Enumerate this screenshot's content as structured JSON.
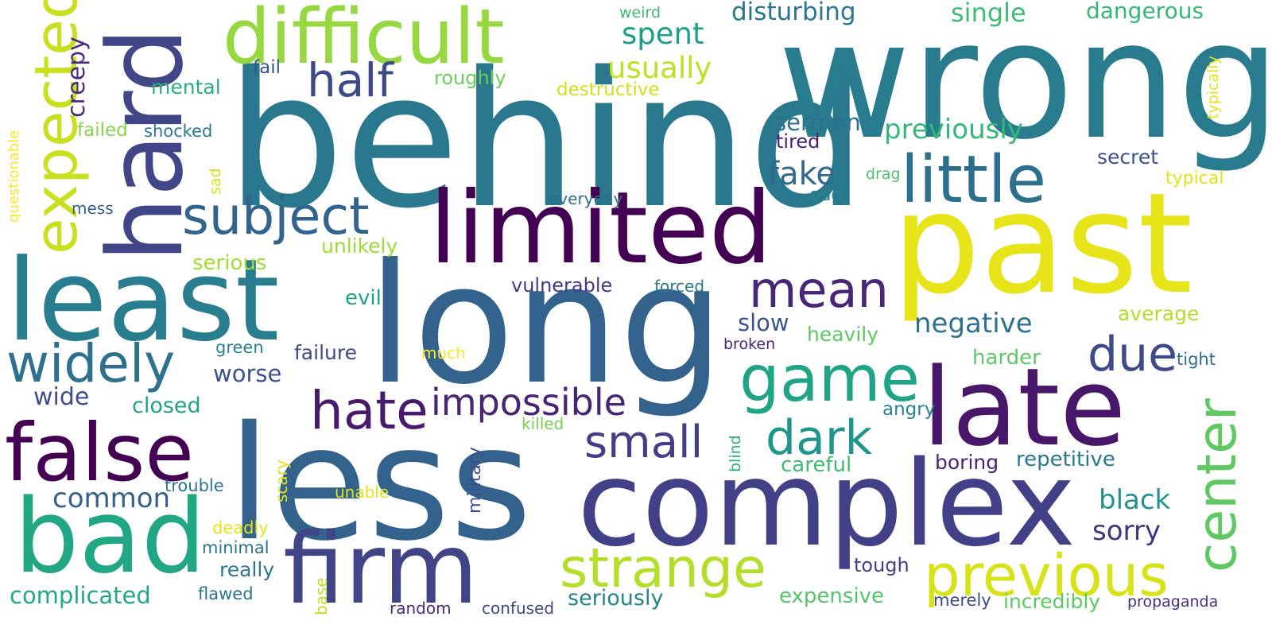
{
  "words": [
    {
      "text": "behind",
      "color": "#2a788e"
    },
    {
      "text": "wrong",
      "color": "#297b8e"
    },
    {
      "text": "long",
      "color": "#33638d"
    },
    {
      "text": "less",
      "color": "#33638d"
    },
    {
      "text": "past",
      "color": "#e7e419"
    },
    {
      "text": "complex",
      "color": "#424086"
    },
    {
      "text": "limited",
      "color": "#440154"
    },
    {
      "text": "least",
      "color": "#287d8e"
    },
    {
      "text": "late",
      "color": "#481769"
    },
    {
      "text": "difficult",
      "color": "#95d840"
    },
    {
      "text": "hard",
      "color": "#404688"
    },
    {
      "text": "bad",
      "color": "#22a785"
    },
    {
      "text": "firm",
      "color": "#414487"
    },
    {
      "text": "false",
      "color": "#440154"
    },
    {
      "text": "strange",
      "color": "#b5de2b"
    },
    {
      "text": "previous",
      "color": "#d8e219"
    },
    {
      "text": "little",
      "color": "#2d708e"
    },
    {
      "text": "game",
      "color": "#20a486"
    },
    {
      "text": "subject",
      "color": "#32648e"
    },
    {
      "text": "mean",
      "color": "#482677"
    },
    {
      "text": "widely",
      "color": "#2d718e"
    },
    {
      "text": "hate",
      "color": "#481a6c"
    },
    {
      "text": "impossible",
      "color": "#482475"
    },
    {
      "text": "expected",
      "color": "#c8e020"
    },
    {
      "text": "due",
      "color": "#3e4a89"
    },
    {
      "text": "dark",
      "color": "#1f968b"
    },
    {
      "text": "small",
      "color": "#433e85"
    },
    {
      "text": "half",
      "color": "#3e4989"
    },
    {
      "text": "center",
      "color": "#5ec962"
    },
    {
      "text": "fake",
      "color": "#31688e"
    },
    {
      "text": "negative",
      "color": "#2c728e"
    },
    {
      "text": "black",
      "color": "#21918c"
    },
    {
      "text": "common",
      "color": "#355f8d"
    },
    {
      "text": "previously",
      "color": "#35b779"
    },
    {
      "text": "sorry",
      "color": "#46337e"
    },
    {
      "text": "disturbing",
      "color": "#2a768e"
    },
    {
      "text": "spent",
      "color": "#1f9e89"
    },
    {
      "text": "usually",
      "color": "#bddf26"
    },
    {
      "text": "single",
      "color": "#3fbc73"
    },
    {
      "text": "dangerous",
      "color": "#35b779"
    },
    {
      "text": "complicated",
      "color": "#22a884"
    },
    {
      "text": "worse",
      "color": "#3b528b"
    },
    {
      "text": "wide",
      "color": "#3e4c8a"
    },
    {
      "text": "slow",
      "color": "#3a548c"
    },
    {
      "text": "failure",
      "color": "#3e4989"
    },
    {
      "text": "creepy",
      "color": "#472c7a"
    },
    {
      "text": "repetitive",
      "color": "#2a788e"
    },
    {
      "text": "expensive",
      "color": "#54c568"
    },
    {
      "text": "harder",
      "color": "#5ec962"
    },
    {
      "text": "average",
      "color": "#b5de2b"
    },
    {
      "text": "heavily",
      "color": "#5ec962"
    },
    {
      "text": "closed",
      "color": "#20a386"
    },
    {
      "text": "seriously",
      "color": "#25838e"
    },
    {
      "text": "incredibly",
      "color": "#5ec962"
    },
    {
      "text": "mental",
      "color": "#29af7f"
    },
    {
      "text": "evil",
      "color": "#1fa088"
    },
    {
      "text": "careful",
      "color": "#3fbc73"
    },
    {
      "text": "secret",
      "color": "#3b528b"
    },
    {
      "text": "sermon",
      "color": "#2c728e"
    },
    {
      "text": "tired",
      "color": "#481f70"
    },
    {
      "text": "really",
      "color": "#2a788e"
    },
    {
      "text": "tough",
      "color": "#433e85"
    },
    {
      "text": "unlikely",
      "color": "#a0da39"
    },
    {
      "text": "serious",
      "color": "#a5db36"
    },
    {
      "text": "vulnerable",
      "color": "#453781"
    },
    {
      "text": "roughly",
      "color": "#6ccd5a"
    },
    {
      "text": "boring",
      "color": "#482475"
    },
    {
      "text": "destructive",
      "color": "#d0e11c"
    },
    {
      "text": "shocked",
      "color": "#2a788e"
    },
    {
      "text": "failed",
      "color": "#86d549"
    },
    {
      "text": "fail",
      "color": "#39568c"
    },
    {
      "text": "angry",
      "color": "#26828e"
    },
    {
      "text": "merely",
      "color": "#3e4989"
    },
    {
      "text": "tight",
      "color": "#2f6c8e"
    },
    {
      "text": "typical",
      "color": "#e2e418"
    },
    {
      "text": "everyday",
      "color": "#2f6c8e"
    },
    {
      "text": "odd",
      "color": "#26828e"
    },
    {
      "text": "broken",
      "color": "#482878"
    },
    {
      "text": "green",
      "color": "#26828e"
    },
    {
      "text": "trouble",
      "color": "#2c738e"
    },
    {
      "text": "forced",
      "color": "#2a788e"
    },
    {
      "text": "random",
      "color": "#472d7b"
    },
    {
      "text": "confused",
      "color": "#3f4788"
    },
    {
      "text": "propaganda",
      "color": "#46327e"
    },
    {
      "text": "mess",
      "color": "#355f8d"
    },
    {
      "text": "minimal",
      "color": "#2c728e"
    },
    {
      "text": "flawed",
      "color": "#2c738e"
    },
    {
      "text": "weird",
      "color": "#3fbc73"
    },
    {
      "text": "drag",
      "color": "#4ac16d"
    },
    {
      "text": "much",
      "color": "#fde725"
    },
    {
      "text": "killed",
      "color": "#7ad151"
    },
    {
      "text": "unable",
      "color": "#e2e418"
    },
    {
      "text": "deadly",
      "color": "#e7e419"
    },
    {
      "text": "questionable",
      "color": "#fde725"
    },
    {
      "text": "sad",
      "color": "#d8e219"
    },
    {
      "text": "military",
      "color": "#3e4c8a"
    },
    {
      "text": "scary",
      "color": "#e2e418"
    },
    {
      "text": "blind",
      "color": "#2ab07f"
    },
    {
      "text": "base",
      "color": "#c2df23"
    },
    {
      "text": "typically",
      "color": "#e5e419"
    }
  ]
}
